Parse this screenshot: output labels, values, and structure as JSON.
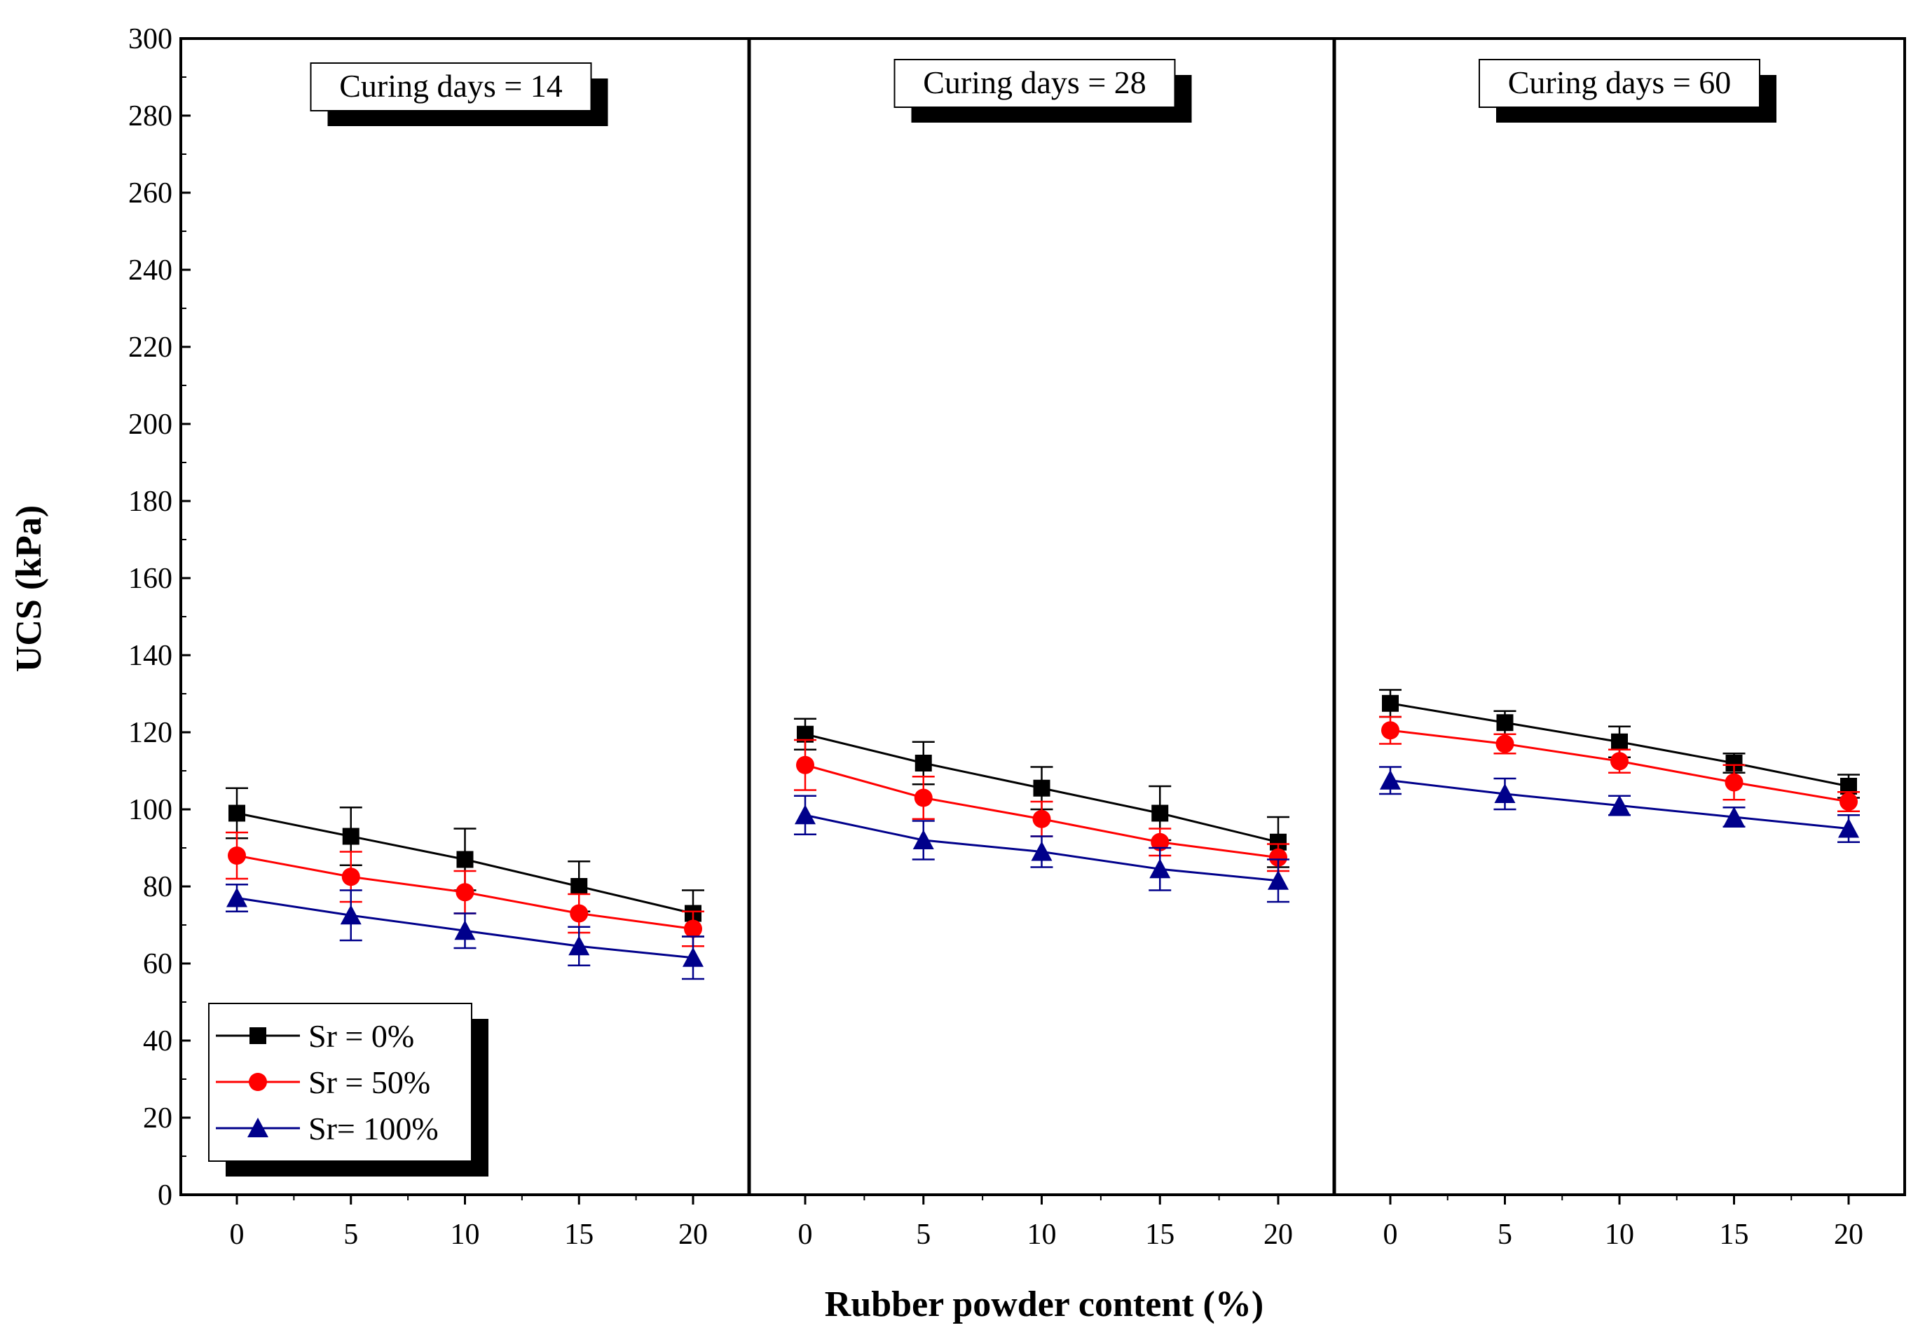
{
  "chart_data": {
    "type": "line",
    "ylabel": "UCS (kPa)",
    "xlabel": "Rubber powder content (%)",
    "ylim": [
      0,
      300
    ],
    "yticks": [
      0,
      20,
      40,
      60,
      80,
      100,
      120,
      140,
      160,
      180,
      200,
      220,
      240,
      260,
      280,
      300
    ],
    "x": [
      0,
      5,
      10,
      15,
      20
    ],
    "legend": {
      "placement": "bottom-left of first panel",
      "entries": [
        "Sr = 0%",
        "Sr = 50%",
        "Sr= 100%"
      ]
    },
    "series_style": [
      {
        "name": "Sr = 0%",
        "color": "#000000",
        "marker": "square"
      },
      {
        "name": "Sr = 50%",
        "color": "#ff0000",
        "marker": "circle"
      },
      {
        "name": "Sr= 100%",
        "color": "#00008b",
        "marker": "triangle"
      }
    ],
    "panels": [
      {
        "label": "Curing days = 14",
        "series": [
          {
            "name": "Sr = 0%",
            "values": [
              99,
              93,
              87,
              80,
              73
            ],
            "errors": [
              6.5,
              7.5,
              8,
              6.5,
              6
            ]
          },
          {
            "name": "Sr = 50%",
            "values": [
              88,
              82.5,
              78.5,
              73,
              69
            ],
            "errors": [
              6,
              6.5,
              5.5,
              5,
              4.5
            ]
          },
          {
            "name": "Sr= 100%",
            "values": [
              77,
              72.5,
              68.5,
              64.5,
              61.5
            ],
            "errors": [
              3.5,
              6.5,
              4.5,
              5,
              5.5
            ]
          }
        ]
      },
      {
        "label": "Curing days = 28",
        "series": [
          {
            "name": "Sr = 0%",
            "values": [
              119.5,
              112,
              105.5,
              99,
              91.5
            ],
            "errors": [
              4,
              5.5,
              5.5,
              7,
              6.5
            ]
          },
          {
            "name": "Sr = 50%",
            "values": [
              111.5,
              103,
              97.5,
              91.5,
              87.5
            ],
            "errors": [
              6.5,
              5.5,
              4.5,
              3.5,
              3.5
            ]
          },
          {
            "name": "Sr= 100%",
            "values": [
              98.5,
              92,
              89,
              84.5,
              81.5
            ],
            "errors": [
              5,
              5,
              4,
              5.5,
              5.5
            ]
          }
        ]
      },
      {
        "label": "Curing days = 60",
        "series": [
          {
            "name": "Sr = 0%",
            "values": [
              127.5,
              122.5,
              117.5,
              112,
              106
            ],
            "errors": [
              3.5,
              3,
              4,
              2.5,
              3
            ]
          },
          {
            "name": "Sr = 50%",
            "values": [
              120.5,
              117,
              112.5,
              107,
              102
            ],
            "errors": [
              3.5,
              2.5,
              3,
              4.5,
              2.5
            ]
          },
          {
            "name": "Sr= 100%",
            "values": [
              107.5,
              104,
              101,
              98,
              95
            ],
            "errors": [
              3.5,
              4,
              2.5,
              2.5,
              3.5
            ]
          }
        ]
      }
    ]
  }
}
